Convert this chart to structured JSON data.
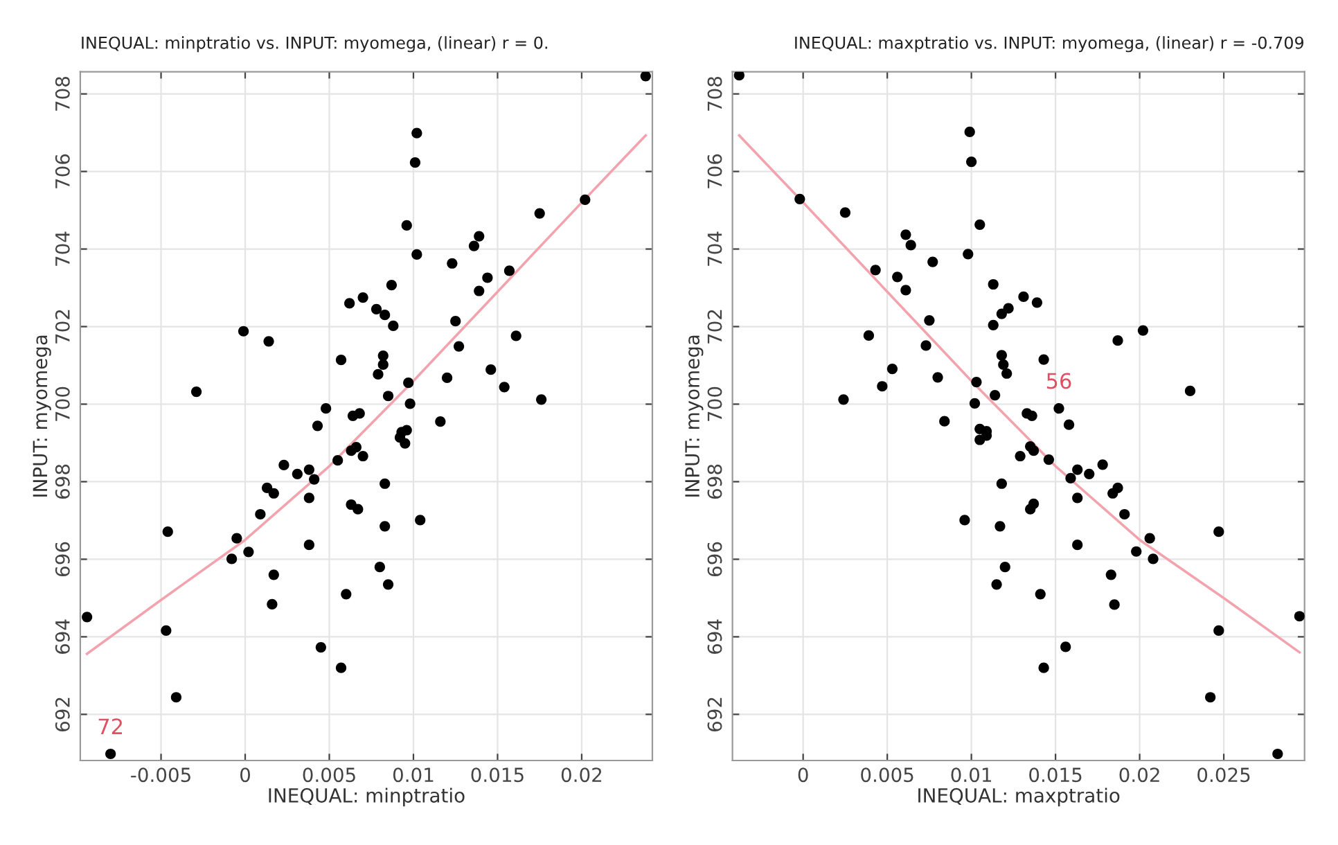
{
  "chart_data": [
    {
      "type": "scatter",
      "title": "INEQUAL: minptratio vs. INPUT: myomega, (linear) r = 0.",
      "xlabel": "INEQUAL: minptratio",
      "ylabel": "INPUT: myomega",
      "xlim": [
        -0.0098,
        0.0242
      ],
      "ylim": [
        690.81,
        708.57
      ],
      "xticks": [
        -0.005,
        0,
        0.005,
        0.01,
        0.015,
        0.02
      ],
      "yticks": [
        692,
        694,
        696,
        698,
        700,
        702,
        704,
        706,
        708
      ],
      "grid": true,
      "series": [
        {
          "marker": "circle",
          "color": "#000000",
          "x": [
            0.0238,
            0.0102,
            0.0101,
            0.0202,
            0.0175,
            0.0096,
            0.0102,
            0.0139,
            0.0136,
            0.0123,
            0.0157,
            0.0144,
            0.0139,
            0.0087,
            0.0062,
            0.007,
            0.0078,
            0.0083,
            0.0088,
            0.0125,
            -0.0001,
            0.0014,
            0.0161,
            0.0127,
            0.0057,
            0.0082,
            0.0082,
            0.0079,
            0.0146,
            0.012,
            0.0097,
            0.0154,
            -0.0029,
            0.0085,
            0.0176,
            0.0098,
            0.0048,
            0.0043,
            0.0064,
            0.0068,
            0.0116,
            0.0093,
            0.0096,
            0.0092,
            0.0095,
            0.0063,
            0.0066,
            0.007,
            0.0055,
            0.0023,
            0.0031,
            0.0038,
            0.0041,
            0.0083,
            0.0013,
            0.0017,
            0.0038,
            0.0063,
            0.0067,
            0.0009,
            0.0104,
            0.0083,
            -0.0046,
            -0.0005,
            0.0038,
            0.0002,
            -0.0008,
            0.008,
            0.0017,
            0.0085,
            0.006,
            0.0016,
            -0.0094,
            -0.0047,
            0.0045,
            0.0057,
            -0.0041,
            -0.008
          ],
          "values": [
            708.46,
            706.99,
            706.23,
            705.27,
            704.92,
            704.61,
            703.86,
            704.33,
            704.08,
            703.63,
            703.44,
            703.26,
            702.92,
            703.07,
            702.6,
            702.75,
            702.45,
            702.3,
            702.02,
            702.14,
            701.88,
            701.62,
            701.76,
            701.49,
            701.14,
            701.25,
            701.02,
            700.77,
            700.89,
            700.68,
            700.55,
            700.44,
            700.32,
            700.21,
            700.12,
            700.01,
            699.89,
            699.44,
            699.7,
            699.76,
            699.55,
            699.28,
            699.33,
            699.14,
            698.99,
            698.8,
            698.89,
            698.66,
            698.55,
            698.43,
            698.2,
            698.31,
            698.06,
            697.95,
            697.84,
            697.7,
            697.58,
            697.41,
            697.29,
            697.16,
            697.01,
            696.85,
            696.71,
            696.54,
            696.37,
            696.19,
            696.01,
            695.8,
            695.6,
            695.35,
            695.1,
            694.84,
            694.51,
            694.16,
            693.73,
            693.2,
            692.44,
            690.98
          ]
        },
        {
          "type": "line",
          "color": "#f2a3ad",
          "x": [
            -0.0094,
            -0.005,
            0,
            0.005,
            0.01,
            0.015,
            0.02,
            0.0238
          ],
          "values": [
            693.56,
            694.95,
            696.5,
            698.4,
            700.6,
            702.9,
            705.2,
            706.93
          ]
        }
      ],
      "annotations": [
        {
          "text": "72",
          "x": -0.008,
          "y": 690.98
        }
      ]
    },
    {
      "type": "scatter",
      "title": "INEQUAL: maxptratio vs. INPUT: myomega, (linear) r = -0.709",
      "xlabel": "INEQUAL: maxptratio",
      "ylabel": "INPUT: myomega",
      "xlim": [
        -0.0042,
        0.0298
      ],
      "ylim": [
        690.81,
        708.57
      ],
      "xticks": [
        0,
        0.005,
        0.01,
        0.015,
        0.02,
        0.025
      ],
      "yticks": [
        692,
        694,
        696,
        698,
        700,
        702,
        704,
        706,
        708
      ],
      "grid": true,
      "series": [
        {
          "marker": "circle",
          "color": "#000000",
          "x": [
            -0.0038,
            0.0099,
            0.01,
            -0.0002,
            0.0025,
            0.0105,
            0.0098,
            0.0061,
            0.0064,
            0.0077,
            0.0043,
            0.0056,
            0.0061,
            0.0113,
            0.0139,
            0.0131,
            0.0122,
            0.0118,
            0.0113,
            0.0075,
            0.0202,
            0.0187,
            0.0039,
            0.0073,
            0.0143,
            0.0118,
            0.0119,
            0.0121,
            0.0053,
            0.008,
            0.0103,
            0.0047,
            0.023,
            0.0114,
            0.0024,
            0.0102,
            0.0152,
            0.0133,
            0.0136,
            0.0158,
            0.0084,
            0.0105,
            0.0109,
            0.0105,
            0.0109,
            0.0135,
            0.0137,
            0.0129,
            0.0146,
            0.0178,
            0.0163,
            0.017,
            0.0159,
            0.0118,
            0.0187,
            0.0184,
            0.0163,
            0.0137,
            0.0135,
            0.0191,
            0.0096,
            0.0117,
            0.0247,
            0.0206,
            0.0163,
            0.0198,
            0.0208,
            0.012,
            0.0183,
            0.0115,
            0.0141,
            0.0185,
            0.0295,
            0.0247,
            0.0156,
            0.0143,
            0.0242,
            0.0282
          ],
          "values": [
            708.48,
            707.02,
            706.25,
            705.29,
            704.94,
            704.63,
            703.87,
            704.37,
            704.1,
            703.67,
            703.46,
            703.28,
            702.94,
            703.09,
            702.62,
            702.77,
            702.47,
            702.33,
            702.04,
            702.16,
            701.9,
            701.64,
            701.77,
            701.51,
            701.15,
            701.26,
            701.02,
            700.79,
            700.91,
            700.69,
            700.57,
            700.46,
            700.34,
            700.23,
            700.12,
            700.02,
            699.89,
            699.76,
            699.7,
            699.47,
            699.56,
            699.36,
            699.3,
            699.08,
            699.19,
            698.91,
            698.8,
            698.66,
            698.57,
            698.44,
            698.31,
            698.2,
            698.09,
            697.95,
            697.84,
            697.7,
            697.58,
            697.43,
            697.29,
            697.16,
            697.01,
            696.85,
            696.71,
            696.54,
            696.37,
            696.2,
            696.01,
            695.8,
            695.6,
            695.35,
            695.1,
            694.83,
            694.53,
            694.16,
            693.74,
            693.2,
            692.44,
            690.98
          ]
        },
        {
          "type": "line",
          "color": "#f2a3ad",
          "x": [
            -0.0038,
            0,
            0.005,
            0.01,
            0.015,
            0.02,
            0.025,
            0.0295
          ],
          "values": [
            706.93,
            705.2,
            702.9,
            700.6,
            698.4,
            696.5,
            695.0,
            693.6
          ]
        }
      ],
      "annotations": [
        {
          "text": "56",
          "x": 0.0152,
          "y": 699.89
        }
      ]
    }
  ]
}
